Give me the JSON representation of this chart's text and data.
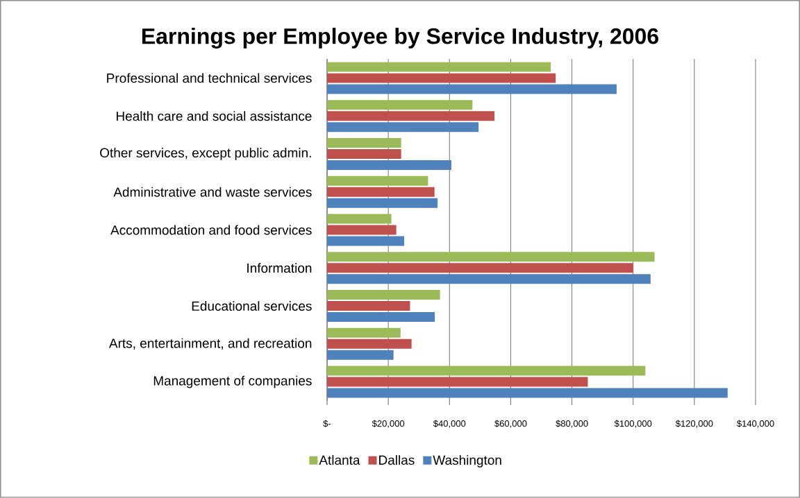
{
  "chart_data": {
    "type": "bar",
    "orientation": "horizontal",
    "title": "Earnings per Employee by Service Industry, 2006",
    "categories": [
      "Professional and technical services",
      "Health care and social assistance",
      "Other services, except public admin.",
      "Administrative and waste services",
      "Accommodation and food services",
      "Information",
      "Educational services",
      "Arts, entertainment, and recreation",
      "Management of companies"
    ],
    "series": [
      {
        "name": "Atlanta",
        "color": "#9bbb59",
        "values": [
          73100,
          47500,
          24200,
          33000,
          21000,
          107000,
          36900,
          24000,
          104000
        ]
      },
      {
        "name": "Dallas",
        "color": "#c0504d",
        "values": [
          74700,
          54700,
          24200,
          35100,
          22600,
          100000,
          27100,
          27600,
          85200
        ]
      },
      {
        "name": "Washington",
        "color": "#4f81bd",
        "values": [
          94600,
          49500,
          40600,
          36100,
          25200,
          105700,
          35200,
          21700,
          130900
        ]
      }
    ],
    "xlim": [
      0,
      140000
    ],
    "xticks": [
      {
        "value": 0,
        "label": "$-"
      },
      {
        "value": 20000,
        "label": "$20,000"
      },
      {
        "value": 40000,
        "label": "$40,000"
      },
      {
        "value": 60000,
        "label": "$60,000"
      },
      {
        "value": 80000,
        "label": "$80,000"
      },
      {
        "value": 100000,
        "label": "$100,000"
      },
      {
        "value": 120000,
        "label": "$120,000"
      },
      {
        "value": 140000,
        "label": "$140,000"
      }
    ],
    "grid": "x",
    "legend": "bottom"
  }
}
